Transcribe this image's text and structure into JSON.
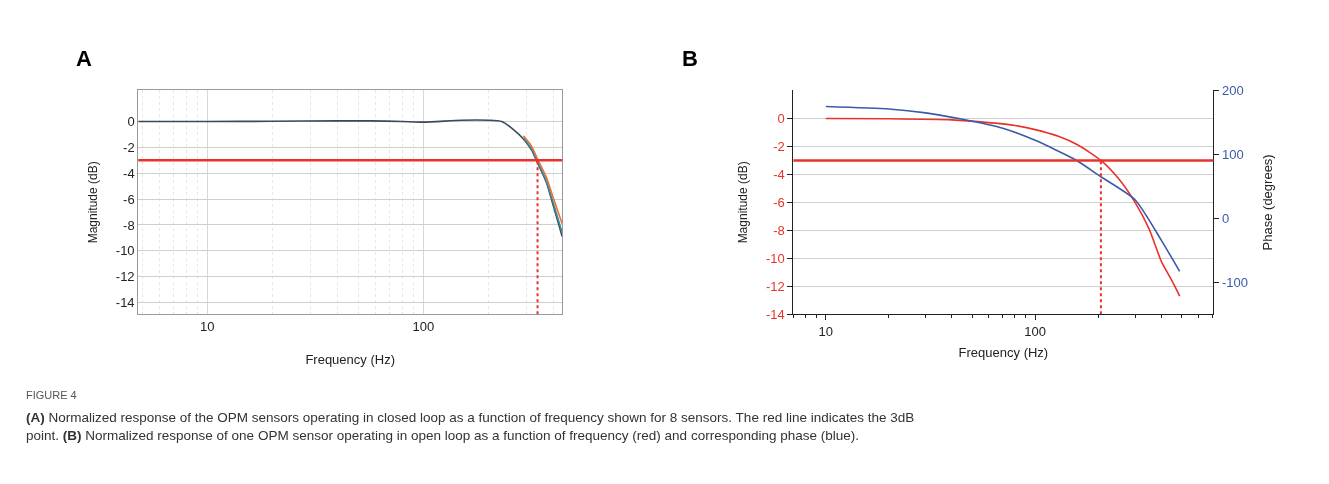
{
  "chart_data": [
    {
      "type": "line",
      "title": "A",
      "xlabel": "Frequency (Hz)",
      "ylabel": "Magnitude (dB)",
      "log": "x",
      "grid": true,
      "line_style": "solid",
      "x": [
        4.8,
        10,
        20,
        40,
        57,
        80,
        100,
        150,
        200,
        230,
        260,
        290,
        316,
        337,
        370,
        400,
        438
      ],
      "xlim": [
        4.8,
        438
      ],
      "xticks": [
        10,
        100
      ],
      "ylim": [
        -14.9,
        2.4
      ],
      "yticks": [
        0,
        -2,
        -4,
        -6,
        -8,
        -10,
        -12,
        -14
      ],
      "series": [
        {
          "color": "#3a4a5a",
          "values": [
            0,
            0,
            0.02,
            0.05,
            0.05,
            0,
            -0.05,
            0.1,
            0.1,
            0,
            -0.6,
            -1.35,
            -2.2,
            -3.2,
            -4.7,
            -6.6,
            -8.9
          ]
        },
        {
          "color": "#3b8a9c",
          "values": [
            null,
            null,
            null,
            null,
            null,
            null,
            null,
            null,
            null,
            null,
            null,
            -1.25,
            -2.1,
            -3.1,
            -4.6,
            -6.4,
            -8.6
          ]
        },
        {
          "color": "#e8743b",
          "values": [
            null,
            null,
            null,
            null,
            null,
            null,
            null,
            null,
            null,
            null,
            null,
            -1.1,
            -1.9,
            -2.9,
            -4.3,
            -6,
            -7.9
          ]
        }
      ],
      "ref_lines": [
        {
          "axis": "y",
          "value": -3,
          "color": "#e8332b",
          "line_style": "solid"
        },
        {
          "axis": "x",
          "value": 337,
          "color": "#e8332b",
          "line_style": "dotted"
        }
      ],
      "annotations": [
        "FIGURE 4",
        "(A) Normalized response of the OPM sensors operating in closed loop as a function of frequency shown for 8 sensors. The red line indicates the 3dB point. (B) Normalized response of one OPM sensor operating in open loop as a function of frequency (red) and corresponding phase (blue)."
      ]
    },
    {
      "type": "line",
      "title": "B",
      "xlabel": "Frequency (Hz)",
      "ylabel": "Magnitude (dB)",
      "y2label": "Phase (degrees)",
      "log": "x",
      "grid": "y",
      "line_style": "solid",
      "xlim": [
        7,
        710
      ],
      "xticks": [
        10,
        100
      ],
      "ylim": [
        -14,
        2
      ],
      "yticks": [
        0,
        -2,
        -4,
        -6,
        -8,
        -10,
        -12,
        -14
      ],
      "y2lim": [
        -150,
        200
      ],
      "y2ticks": [
        200,
        100,
        0,
        -100
      ],
      "series": [
        {
          "color": "#e8332b",
          "x": [
            10,
            20,
            40,
            60,
            80,
            100,
            130,
            160,
            206,
            250,
            300,
            350,
            400,
            450,
            490
          ],
          "values": [
            0,
            -0.02,
            -0.1,
            -0.3,
            -0.5,
            -0.8,
            -1.3,
            -1.9,
            -3,
            -4.3,
            -6,
            -7.9,
            -10.2,
            -11.6,
            -12.7
          ]
        },
        {
          "color": "#3c5aa8",
          "axis": "y2",
          "x": [
            10,
            20,
            30,
            45,
            70,
            100,
            155,
            206,
            300,
            400,
            490
          ],
          "values": [
            175,
            171,
            165,
            155,
            141,
            122,
            92,
            65,
            29,
            -34,
            -83
          ]
        }
      ],
      "ref_lines": [
        {
          "axis": "y",
          "value": -3,
          "color": "#e8332b",
          "line_style": "solid"
        },
        {
          "axis": "x",
          "value": 206,
          "color": "#e8332b",
          "line_style": "dotted"
        }
      ]
    }
  ]
}
